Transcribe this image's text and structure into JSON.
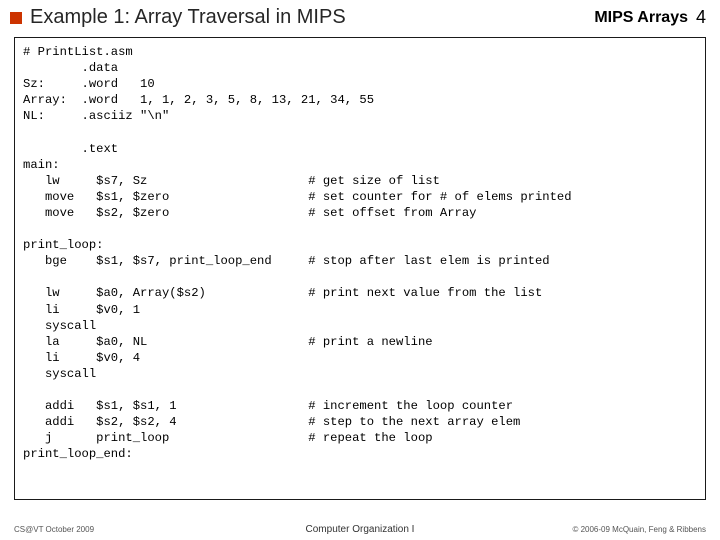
{
  "header": {
    "title": "Example 1: Array Traversal in MIPS",
    "section": "MIPS Arrays",
    "page": "4",
    "bullet_color": "#cc3300"
  },
  "code": "# PrintList.asm\n        .data\nSz:     .word   10\nArray:  .word   1, 1, 2, 3, 5, 8, 13, 21, 34, 55\nNL:     .asciiz \"\\n\"\n\n        .text\nmain:\n   lw     $s7, Sz                      # get size of list\n   move   $s1, $zero                   # set counter for # of elems printed\n   move   $s2, $zero                   # set offset from Array\n\nprint_loop:\n   bge    $s1, $s7, print_loop_end     # stop after last elem is printed\n\n   lw     $a0, Array($s2)              # print next value from the list\n   li     $v0, 1\n   syscall\n   la     $a0, NL                      # print a newline\n   li     $v0, 4\n   syscall\n\n   addi   $s1, $s1, 1                  # increment the loop counter\n   addi   $s2, $s2, 4                  # step to the next array elem\n   j      print_loop                   # repeat the loop\nprint_loop_end:",
  "footer": {
    "left": "CS@VT October 2009",
    "center": "Computer Organization I",
    "right": "© 2006-09  McQuain, Feng & Ribbens"
  }
}
